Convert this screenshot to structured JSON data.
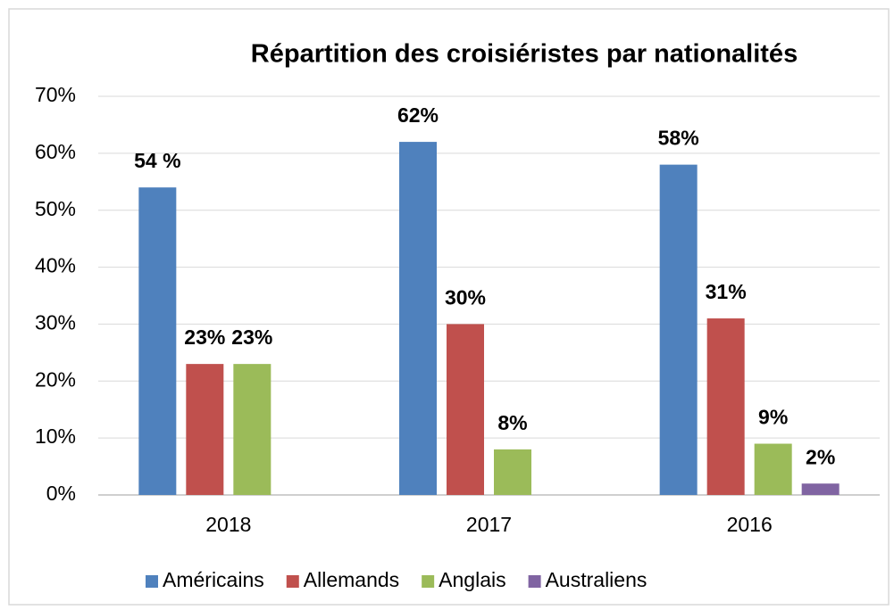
{
  "chart_data": {
    "type": "bar",
    "title": "Répartition des croisiéristes par nationalités",
    "categories": [
      "2018",
      "2017",
      "2016"
    ],
    "series": [
      {
        "name": "Américains",
        "color": "#4f81bd",
        "values": [
          54,
          62,
          58
        ],
        "value_labels": [
          "54 %",
          "62%",
          "58%"
        ]
      },
      {
        "name": "Allemands",
        "color": "#c0504d",
        "values": [
          23,
          30,
          31
        ],
        "value_labels": [
          "23%",
          "30%",
          "31%"
        ]
      },
      {
        "name": "Anglais",
        "color": "#9bbb59",
        "values": [
          23,
          8,
          9
        ],
        "value_labels": [
          "23%",
          "8%",
          "9%"
        ]
      },
      {
        "name": "Australiens",
        "color": "#8064a2",
        "values": [
          null,
          null,
          2
        ],
        "value_labels": [
          null,
          null,
          "2%"
        ]
      }
    ],
    "ylim": [
      0,
      70
    ],
    "yticks": [
      {
        "value": 0,
        "label": "0%"
      },
      {
        "value": 10,
        "label": "10%"
      },
      {
        "value": 20,
        "label": "20%"
      },
      {
        "value": 30,
        "label": "30%"
      },
      {
        "value": 40,
        "label": "40%"
      },
      {
        "value": 50,
        "label": "50%"
      },
      {
        "value": 60,
        "label": "60%"
      },
      {
        "value": 70,
        "label": "70%"
      }
    ],
    "grid": true,
    "legend": "bottom"
  }
}
